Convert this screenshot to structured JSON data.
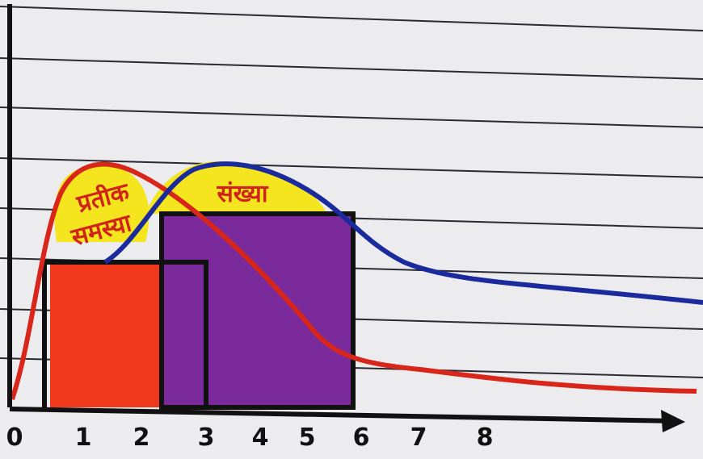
{
  "axis": {
    "ticks": [
      "0",
      "1",
      "2",
      "3",
      "4",
      "5",
      "6",
      "7",
      "8"
    ]
  },
  "labels": {
    "left": [
      "प्रतीक",
      "समस्या"
    ],
    "right": "संख्या"
  }
}
